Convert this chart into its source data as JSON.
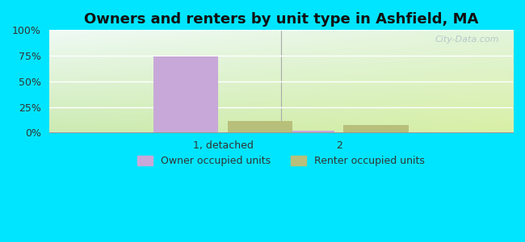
{
  "title": "Owners and renters by unit type in Ashfield, MA",
  "categories": [
    "1, detached",
    "2"
  ],
  "owner_values": [
    74,
    2
  ],
  "renter_values": [
    11,
    7
  ],
  "owner_color": "#c8a8d8",
  "renter_color": "#b8bf7a",
  "ylim": [
    0,
    100
  ],
  "yticks": [
    0,
    25,
    50,
    75,
    100
  ],
  "ytick_labels": [
    "0%",
    "25%",
    "50%",
    "75%",
    "100%"
  ],
  "outer_background": "#00e5ff",
  "title_fontsize": 13,
  "legend_label_owner": "Owner occupied units",
  "legend_label_renter": "Renter occupied units",
  "bar_width": 0.28,
  "group_positions": [
    0.25,
    0.75
  ],
  "watermark": "City-Data.com"
}
